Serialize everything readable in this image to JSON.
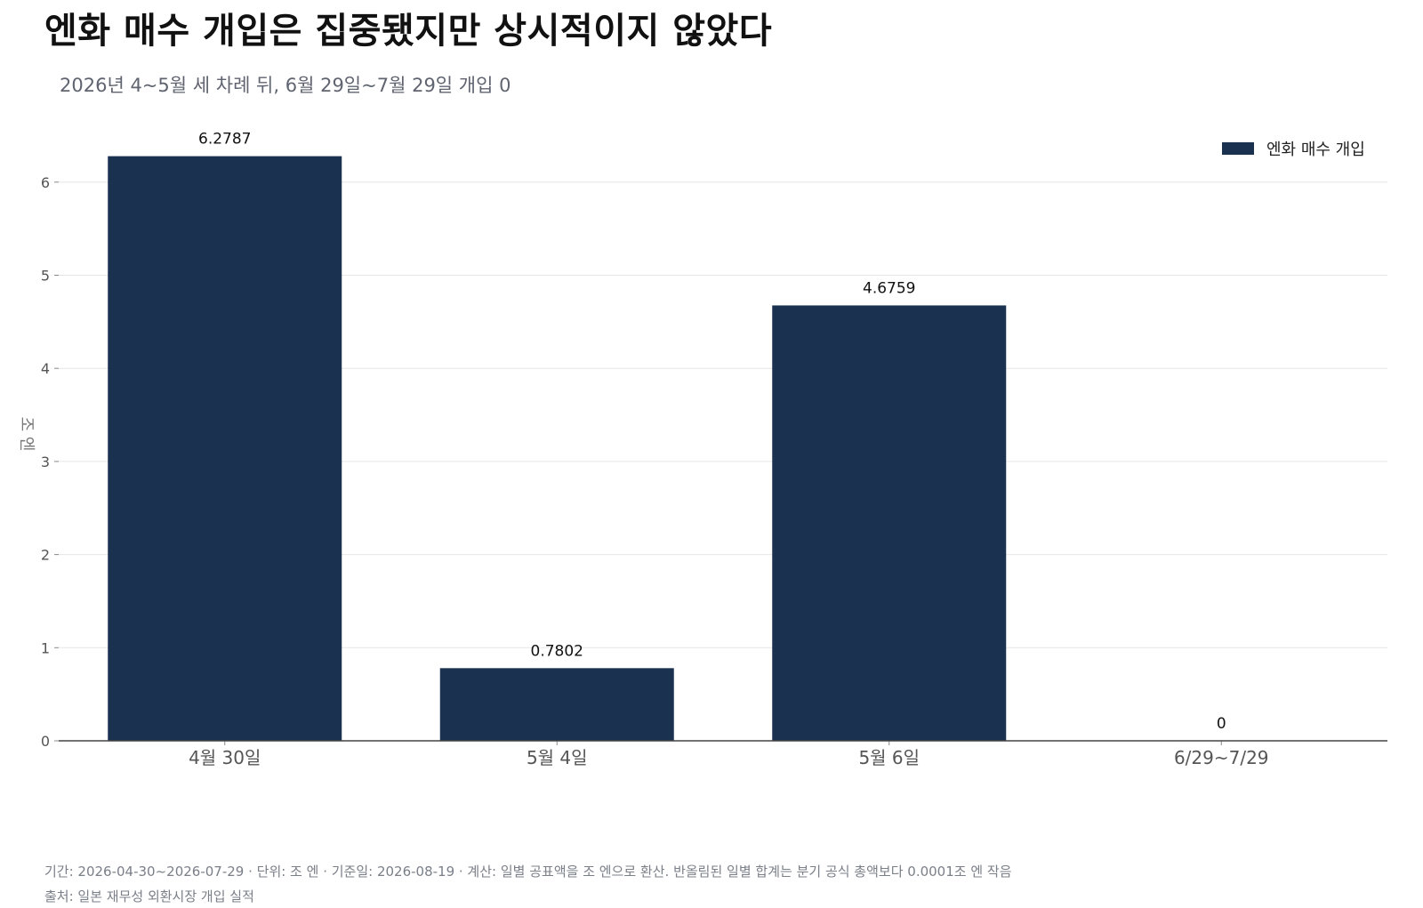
{
  "title": "엔화 매수 개입은 집중됐지만 상시적이지 않았다",
  "subtitle": "2026년 4~5월 세 차례 뒤, 6월 29일~7월 29일 개입 0",
  "chart_data": {
    "type": "bar",
    "categories": [
      "4월 30일",
      "5월 4일",
      "5월 6일",
      "6/29~7/29"
    ],
    "series": [
      {
        "name": "엔화 매수 개입",
        "values": [
          6.2787,
          0.7802,
          4.6759,
          0
        ],
        "labels": [
          "6.2787",
          "0.7802",
          "4.6759",
          "0"
        ]
      }
    ],
    "ylabel": "조 엔",
    "xlabel": "",
    "ylim": [
      0,
      6.3
    ],
    "yticks": [
      0,
      1,
      2,
      3,
      4,
      5,
      6
    ],
    "grid": true,
    "legend_position": "top-right",
    "bar_color": "#1a3150",
    "grid_color": "#e6e6e6",
    "axis_color": "#444444"
  },
  "footer": {
    "note": "기간: 2026-04-30~2026-07-29 · 단위: 조 엔 · 기준일: 2026-08-19 · 계산: 일별 공표액을 조 엔으로 환산. 반올림된 일별 합계는 분기 공식 총액보다 0.0001조 엔 작음",
    "source": "출처: 일본 재무성 외환시장 개입 실적"
  }
}
